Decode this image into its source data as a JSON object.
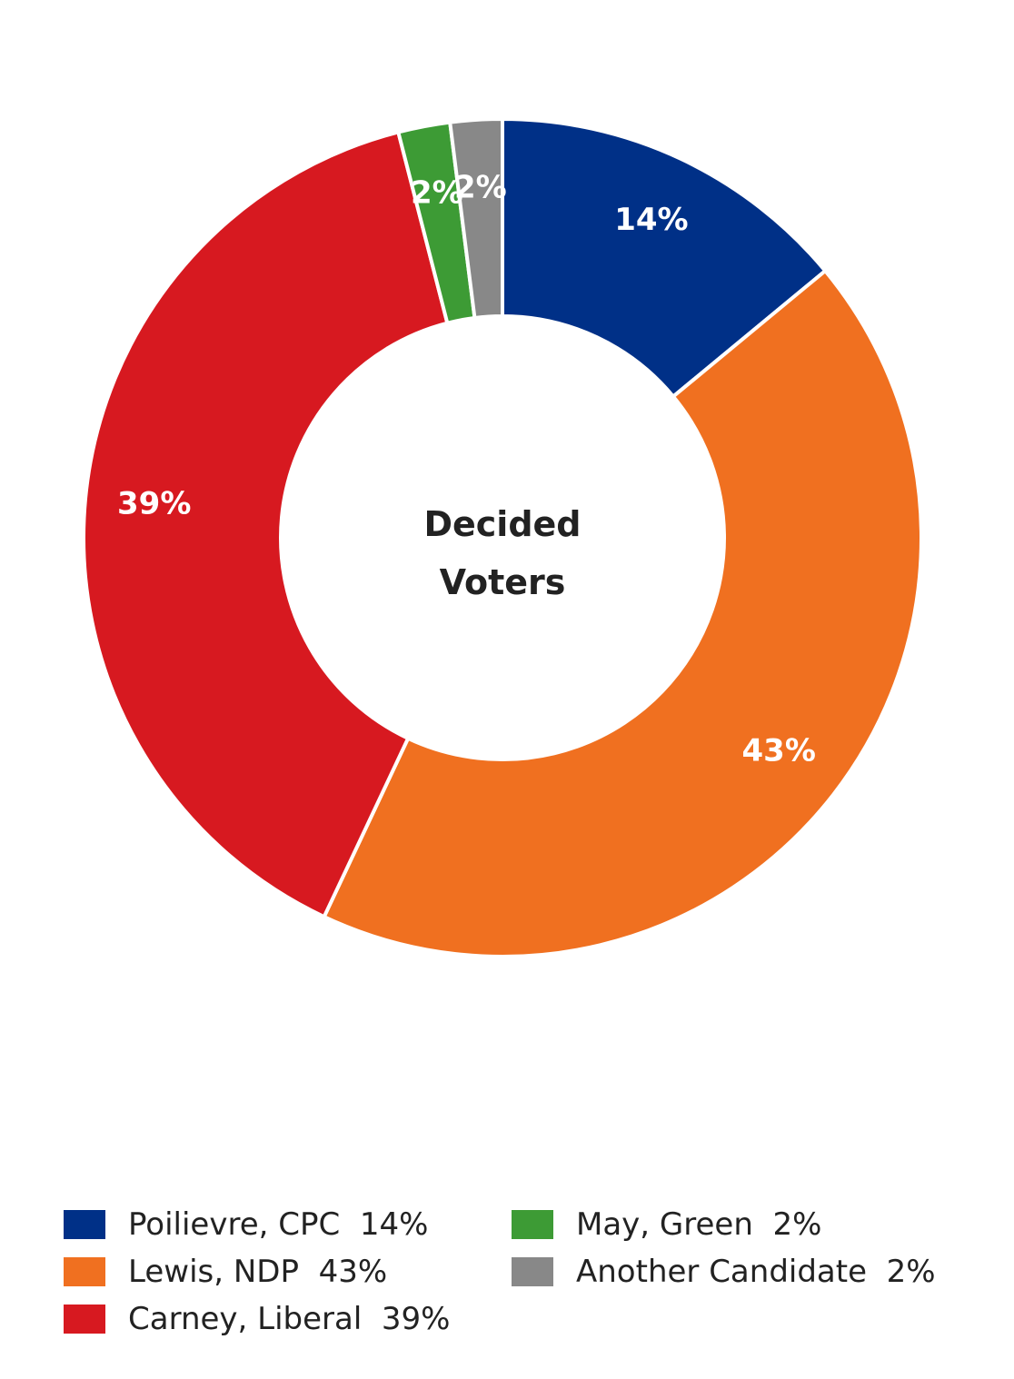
{
  "chart_data": {
    "type": "pie",
    "center_label": [
      "Decided",
      "Voters"
    ],
    "slices": [
      {
        "name": "Poilievre, CPC",
        "value": 14,
        "label": "14%",
        "color": "#003087",
        "legend": "Poilievre, CPC  14%"
      },
      {
        "name": "Lewis, NDP",
        "value": 43,
        "label": "43%",
        "color": "#F07020",
        "legend": "Lewis, NDP  43%"
      },
      {
        "name": "Carney, Liberal",
        "value": 39,
        "label": "39%",
        "color": "#D71920",
        "legend": "Carney, Liberal  39%"
      },
      {
        "name": "May, Green",
        "value": 2,
        "label": "2%",
        "color": "#3D9B35",
        "legend": "May, Green  2%"
      },
      {
        "name": "Another Candidate",
        "value": 2,
        "label": "2%",
        "color": "#888888",
        "legend": "Another Candidate  2%"
      }
    ],
    "start_angle": "12 o'clock",
    "direction": "clockwise",
    "legend_position": "bottom"
  }
}
